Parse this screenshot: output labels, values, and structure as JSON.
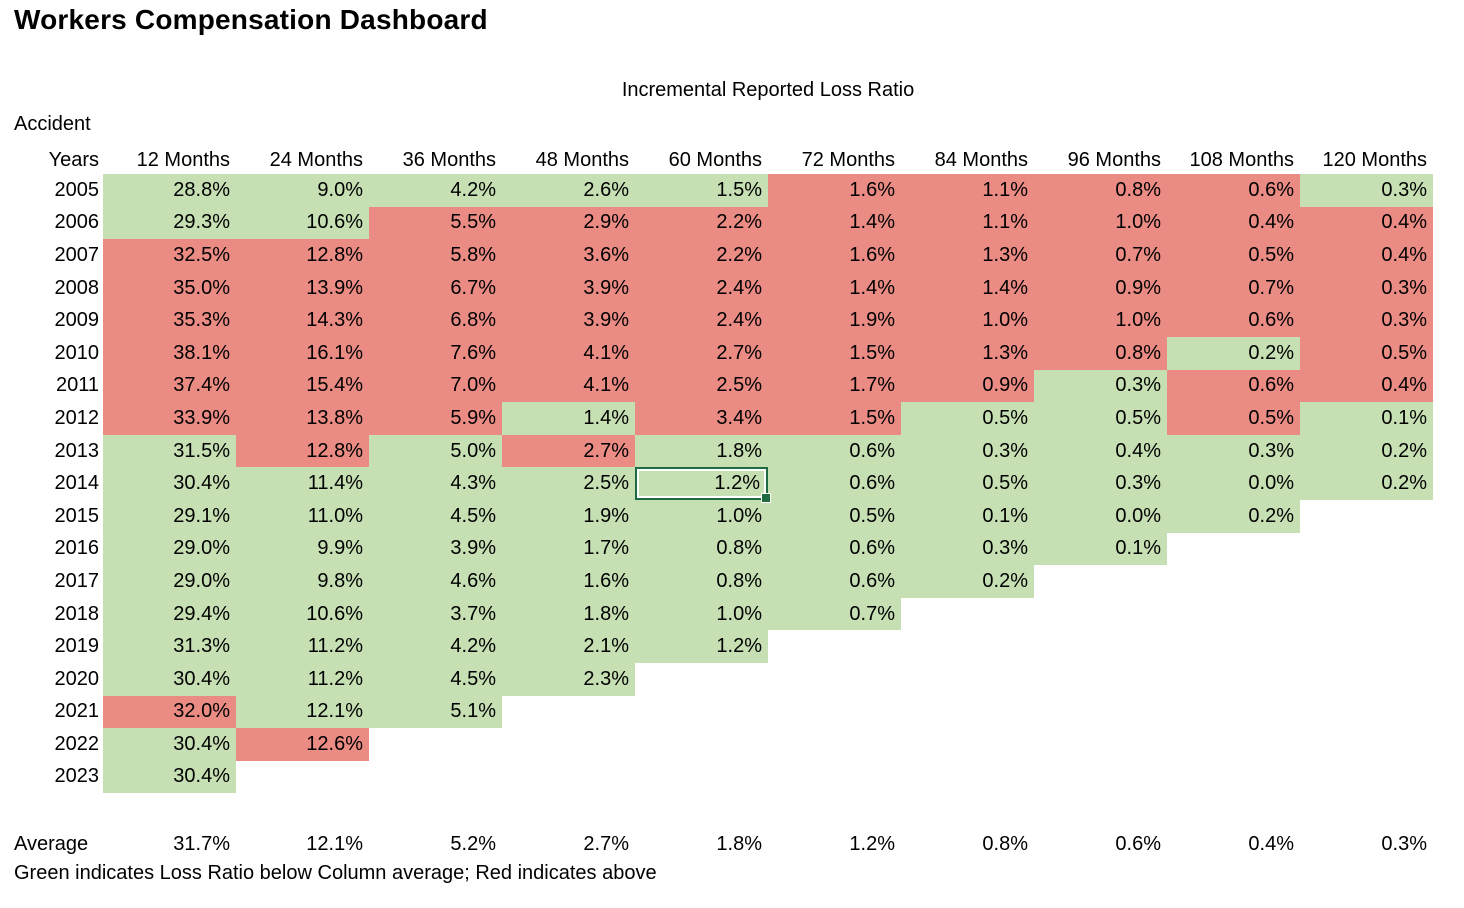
{
  "title": "Workers Compensation Dashboard",
  "colors": {
    "below_average_fill": "#c6e0b4",
    "above_average_fill": "#ea8b84",
    "selection_border": "#1e6b41"
  },
  "table": {
    "subtitle": "Incremental Reported Loss Ratio",
    "row_header_line1": "Accident",
    "row_header_line2": "Years",
    "columns": [
      "12 Months",
      "24 Months",
      "36 Months",
      "48 Months",
      "60 Months",
      "72 Months",
      "84 Months",
      "96 Months",
      "108 Months",
      "120 Months"
    ],
    "rows": [
      {
        "year": "2005",
        "cells": [
          [
            "28.8%",
            "g"
          ],
          [
            "9.0%",
            "g"
          ],
          [
            "4.2%",
            "g"
          ],
          [
            "2.6%",
            "g"
          ],
          [
            "1.5%",
            "g"
          ],
          [
            "1.6%",
            "r"
          ],
          [
            "1.1%",
            "r"
          ],
          [
            "0.8%",
            "r"
          ],
          [
            "0.6%",
            "r"
          ],
          [
            "0.3%",
            "g"
          ]
        ]
      },
      {
        "year": "2006",
        "cells": [
          [
            "29.3%",
            "g"
          ],
          [
            "10.6%",
            "g"
          ],
          [
            "5.5%",
            "r"
          ],
          [
            "2.9%",
            "r"
          ],
          [
            "2.2%",
            "r"
          ],
          [
            "1.4%",
            "r"
          ],
          [
            "1.1%",
            "r"
          ],
          [
            "1.0%",
            "r"
          ],
          [
            "0.4%",
            "r"
          ],
          [
            "0.4%",
            "r"
          ]
        ]
      },
      {
        "year": "2007",
        "cells": [
          [
            "32.5%",
            "r"
          ],
          [
            "12.8%",
            "r"
          ],
          [
            "5.8%",
            "r"
          ],
          [
            "3.6%",
            "r"
          ],
          [
            "2.2%",
            "r"
          ],
          [
            "1.6%",
            "r"
          ],
          [
            "1.3%",
            "r"
          ],
          [
            "0.7%",
            "r"
          ],
          [
            "0.5%",
            "r"
          ],
          [
            "0.4%",
            "r"
          ]
        ]
      },
      {
        "year": "2008",
        "cells": [
          [
            "35.0%",
            "r"
          ],
          [
            "13.9%",
            "r"
          ],
          [
            "6.7%",
            "r"
          ],
          [
            "3.9%",
            "r"
          ],
          [
            "2.4%",
            "r"
          ],
          [
            "1.4%",
            "r"
          ],
          [
            "1.4%",
            "r"
          ],
          [
            "0.9%",
            "r"
          ],
          [
            "0.7%",
            "r"
          ],
          [
            "0.3%",
            "r"
          ]
        ]
      },
      {
        "year": "2009",
        "cells": [
          [
            "35.3%",
            "r"
          ],
          [
            "14.3%",
            "r"
          ],
          [
            "6.8%",
            "r"
          ],
          [
            "3.9%",
            "r"
          ],
          [
            "2.4%",
            "r"
          ],
          [
            "1.9%",
            "r"
          ],
          [
            "1.0%",
            "r"
          ],
          [
            "1.0%",
            "r"
          ],
          [
            "0.6%",
            "r"
          ],
          [
            "0.3%",
            "r"
          ]
        ]
      },
      {
        "year": "2010",
        "cells": [
          [
            "38.1%",
            "r"
          ],
          [
            "16.1%",
            "r"
          ],
          [
            "7.6%",
            "r"
          ],
          [
            "4.1%",
            "r"
          ],
          [
            "2.7%",
            "r"
          ],
          [
            "1.5%",
            "r"
          ],
          [
            "1.3%",
            "r"
          ],
          [
            "0.8%",
            "r"
          ],
          [
            "0.2%",
            "g"
          ],
          [
            "0.5%",
            "r"
          ]
        ]
      },
      {
        "year": "2011",
        "cells": [
          [
            "37.4%",
            "r"
          ],
          [
            "15.4%",
            "r"
          ],
          [
            "7.0%",
            "r"
          ],
          [
            "4.1%",
            "r"
          ],
          [
            "2.5%",
            "r"
          ],
          [
            "1.7%",
            "r"
          ],
          [
            "0.9%",
            "r"
          ],
          [
            "0.3%",
            "g"
          ],
          [
            "0.6%",
            "r"
          ],
          [
            "0.4%",
            "r"
          ]
        ]
      },
      {
        "year": "2012",
        "cells": [
          [
            "33.9%",
            "r"
          ],
          [
            "13.8%",
            "r"
          ],
          [
            "5.9%",
            "r"
          ],
          [
            "1.4%",
            "g"
          ],
          [
            "3.4%",
            "r"
          ],
          [
            "1.5%",
            "r"
          ],
          [
            "0.5%",
            "g"
          ],
          [
            "0.5%",
            "g"
          ],
          [
            "0.5%",
            "r"
          ],
          [
            "0.1%",
            "g"
          ]
        ]
      },
      {
        "year": "2013",
        "cells": [
          [
            "31.5%",
            "g"
          ],
          [
            "12.8%",
            "r"
          ],
          [
            "5.0%",
            "g"
          ],
          [
            "2.7%",
            "r"
          ],
          [
            "1.8%",
            "g"
          ],
          [
            "0.6%",
            "g"
          ],
          [
            "0.3%",
            "g"
          ],
          [
            "0.4%",
            "g"
          ],
          [
            "0.3%",
            "g"
          ],
          [
            "0.2%",
            "g"
          ]
        ]
      },
      {
        "year": "2014",
        "cells": [
          [
            "30.4%",
            "g"
          ],
          [
            "11.4%",
            "g"
          ],
          [
            "4.3%",
            "g"
          ],
          [
            "2.5%",
            "g"
          ],
          [
            "1.2%",
            "g"
          ],
          [
            "0.6%",
            "g"
          ],
          [
            "0.5%",
            "g"
          ],
          [
            "0.3%",
            "g"
          ],
          [
            "0.0%",
            "g"
          ],
          [
            "0.2%",
            "g"
          ]
        ]
      },
      {
        "year": "2015",
        "cells": [
          [
            "29.1%",
            "g"
          ],
          [
            "11.0%",
            "g"
          ],
          [
            "4.5%",
            "g"
          ],
          [
            "1.9%",
            "g"
          ],
          [
            "1.0%",
            "g"
          ],
          [
            "0.5%",
            "g"
          ],
          [
            "0.1%",
            "g"
          ],
          [
            "0.0%",
            "g"
          ],
          [
            "0.2%",
            "g"
          ]
        ]
      },
      {
        "year": "2016",
        "cells": [
          [
            "29.0%",
            "g"
          ],
          [
            "9.9%",
            "g"
          ],
          [
            "3.9%",
            "g"
          ],
          [
            "1.7%",
            "g"
          ],
          [
            "0.8%",
            "g"
          ],
          [
            "0.6%",
            "g"
          ],
          [
            "0.3%",
            "g"
          ],
          [
            "0.1%",
            "g"
          ]
        ]
      },
      {
        "year": "2017",
        "cells": [
          [
            "29.0%",
            "g"
          ],
          [
            "9.8%",
            "g"
          ],
          [
            "4.6%",
            "g"
          ],
          [
            "1.6%",
            "g"
          ],
          [
            "0.8%",
            "g"
          ],
          [
            "0.6%",
            "g"
          ],
          [
            "0.2%",
            "g"
          ]
        ]
      },
      {
        "year": "2018",
        "cells": [
          [
            "29.4%",
            "g"
          ],
          [
            "10.6%",
            "g"
          ],
          [
            "3.7%",
            "g"
          ],
          [
            "1.8%",
            "g"
          ],
          [
            "1.0%",
            "g"
          ],
          [
            "0.7%",
            "g"
          ]
        ]
      },
      {
        "year": "2019",
        "cells": [
          [
            "31.3%",
            "g"
          ],
          [
            "11.2%",
            "g"
          ],
          [
            "4.2%",
            "g"
          ],
          [
            "2.1%",
            "g"
          ],
          [
            "1.2%",
            "g"
          ]
        ]
      },
      {
        "year": "2020",
        "cells": [
          [
            "30.4%",
            "g"
          ],
          [
            "11.2%",
            "g"
          ],
          [
            "4.5%",
            "g"
          ],
          [
            "2.3%",
            "g"
          ]
        ]
      },
      {
        "year": "2021",
        "cells": [
          [
            "32.0%",
            "r"
          ],
          [
            "12.1%",
            "g"
          ],
          [
            "5.1%",
            "g"
          ]
        ]
      },
      {
        "year": "2022",
        "cells": [
          [
            "30.4%",
            "g"
          ],
          [
            "12.6%",
            "r"
          ]
        ]
      },
      {
        "year": "2023",
        "cells": [
          [
            "30.4%",
            "g"
          ]
        ]
      }
    ],
    "selected_cell": {
      "year": "2014",
      "column": "60 Months",
      "column_index": 4,
      "value": "1.2%"
    },
    "average": {
      "label": "Average",
      "values": [
        "31.7%",
        "12.1%",
        "5.2%",
        "2.7%",
        "1.8%",
        "1.2%",
        "0.8%",
        "0.6%",
        "0.4%",
        "0.3%"
      ]
    },
    "footnote": "Green indicates Loss Ratio below Column average; Red indicates above"
  }
}
